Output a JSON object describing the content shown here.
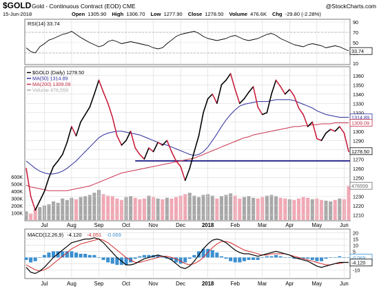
{
  "header": {
    "symbol": "$GOLD",
    "name": "Gold - Continuous Contract (EOD) CME",
    "watermark": "@StockCharts.com",
    "date": "15-Jun-2018",
    "open_label": "Open",
    "open": "1305.90",
    "high_label": "High",
    "high": "1306.70",
    "low_label": "Low",
    "low": "1277.90",
    "close_label": "Close",
    "close": "1278.50",
    "volume_label": "Volume",
    "volume": "476.6K",
    "chg_label": "Chg",
    "chg": "-29.80 (-2.28%)"
  },
  "colors": {
    "price": "#000000",
    "price_down": "#c81e3c",
    "ma50": "#2b2b9a",
    "ma200": "#c8324b",
    "volume_up": "#a8a8a8",
    "volume_down": "#f0a8b4",
    "macd": "#000000",
    "signal": "#d02828",
    "histogram": "#3a8fd0",
    "rsi": "#000000",
    "support": "#00007a",
    "grid": "#d9d9d9"
  },
  "chart_data": [
    {
      "type": "line",
      "panel": "rsi",
      "legend": "RSI(14) 33.74",
      "last_value": "33.74",
      "ylim": [
        10,
        90
      ],
      "y_ticks": [
        10,
        30,
        50,
        70,
        90
      ],
      "y_tick_labels": [
        "10",
        "30",
        "50",
        "70",
        "90"
      ],
      "reference_lines": [
        30,
        70
      ],
      "series": [
        {
          "name": "RSI(14)",
          "values": [
            40,
            33,
            30,
            42,
            48,
            55,
            58,
            62,
            66,
            68,
            72,
            66,
            60,
            55,
            50,
            46,
            42,
            45,
            52,
            55,
            52,
            48,
            50,
            52,
            50,
            48,
            46,
            44,
            40,
            38,
            40,
            48,
            55,
            62,
            66,
            68,
            70,
            72,
            68,
            62,
            58,
            56,
            54,
            56,
            58,
            62,
            64,
            60,
            56,
            54,
            56,
            58,
            62,
            66,
            68,
            64,
            58,
            54,
            50,
            46,
            44,
            42,
            46,
            48,
            46,
            44,
            40,
            42,
            44,
            42,
            38,
            34
          ]
        }
      ]
    },
    {
      "type": "line",
      "panel": "price",
      "legend": [
        {
          "label": "$GOLD (Daily) 1278.50",
          "color": "#000000"
        },
        {
          "label": "MA(50) 1314.89",
          "color": "#2b2b9a"
        },
        {
          "label": "MA(200) 1309.09",
          "color": "#c8324b"
        },
        {
          "label": "Volume 476,559",
          "color": "#a8a8a8"
        }
      ],
      "ylim": [
        1205,
        1368
      ],
      "y_ticks": [
        1210,
        1220,
        1230,
        1240,
        1250,
        1260,
        1270,
        1280,
        1290,
        1300,
        1310,
        1320,
        1330,
        1340,
        1350,
        1360
      ],
      "y_tick_labels": [
        "1210",
        "1220",
        "1230",
        "1240",
        "1250",
        "1260",
        "1270",
        "1280",
        "1290",
        "1300",
        "1310",
        "1320",
        "1330",
        "1340",
        "1350",
        "1360"
      ],
      "x_tick_labels": [
        "Jul",
        "Aug",
        "Sep",
        "Oct",
        "Nov",
        "Dec",
        "2018",
        "Feb",
        "Mar",
        "Apr",
        "May",
        "Jun"
      ],
      "x_tick_index": [
        4,
        10,
        16,
        22,
        28,
        34,
        40,
        46,
        52,
        58,
        64,
        70
      ],
      "support_level": 1268,
      "value_tags": [
        {
          "text": "1314.89",
          "value": 1314.89,
          "color": "#2b2b9a"
        },
        {
          "text": "1309.09",
          "value": 1309.09,
          "color": "#c8324b"
        },
        {
          "text": "1278.50",
          "value": 1278.5,
          "color": "#000000"
        }
      ],
      "series": [
        {
          "name": "$GOLD",
          "values": [
            1260,
            1230,
            1215,
            1225,
            1235,
            1250,
            1262,
            1268,
            1275,
            1288,
            1305,
            1295,
            1310,
            1318,
            1326,
            1340,
            1355,
            1342,
            1330,
            1315,
            1295,
            1285,
            1290,
            1300,
            1282,
            1275,
            1270,
            1282,
            1278,
            1288,
            1285,
            1290,
            1278,
            1268,
            1262,
            1247,
            1260,
            1278,
            1295,
            1320,
            1335,
            1340,
            1330,
            1350,
            1355,
            1362,
            1345,
            1330,
            1335,
            1342,
            1348,
            1326,
            1318,
            1320,
            1340,
            1355,
            1348,
            1340,
            1345,
            1338,
            1325,
            1318,
            1305,
            1310,
            1292,
            1290,
            1298,
            1302,
            1300,
            1305,
            1298,
            1278
          ]
        },
        {
          "name": "MA(50)",
          "values": [
            1268,
            1264,
            1260,
            1257,
            1255,
            1254,
            1254,
            1255,
            1257,
            1260,
            1264,
            1268,
            1273,
            1278,
            1283,
            1288,
            1293,
            1296,
            1298,
            1299,
            1300,
            1300,
            1299,
            1298,
            1297,
            1296,
            1294,
            1292,
            1290,
            1288,
            1286,
            1285,
            1283,
            1281,
            1279,
            1277,
            1275,
            1274,
            1275,
            1278,
            1283,
            1290,
            1297,
            1305,
            1312,
            1318,
            1323,
            1327,
            1329,
            1330,
            1331,
            1332,
            1332,
            1332,
            1333,
            1334,
            1334,
            1334,
            1334,
            1333,
            1331,
            1329,
            1327,
            1325,
            1322,
            1320,
            1318,
            1317,
            1316,
            1315,
            1315,
            1315
          ]
        },
        {
          "name": "MA(200)",
          "values": [
            1242,
            1240,
            1239,
            1238,
            1237,
            1236,
            1236,
            1236,
            1236,
            1236,
            1237,
            1238,
            1239,
            1240,
            1241,
            1243,
            1245,
            1247,
            1249,
            1251,
            1253,
            1255,
            1256,
            1257,
            1258,
            1259,
            1260,
            1261,
            1262,
            1263,
            1264,
            1265,
            1266,
            1267,
            1268,
            1269,
            1270,
            1271,
            1273,
            1275,
            1277,
            1279,
            1281,
            1283,
            1285,
            1287,
            1289,
            1291,
            1293,
            1294,
            1296,
            1297,
            1298,
            1299,
            1300,
            1301,
            1302,
            1303,
            1304,
            1305,
            1305,
            1306,
            1306,
            1307,
            1307,
            1308,
            1308,
            1308,
            1309,
            1309,
            1309,
            1309
          ]
        }
      ]
    },
    {
      "type": "bar",
      "panel": "volume",
      "ylim": [
        0,
        650000
      ],
      "y_ticks": [
        100000,
        200000,
        300000,
        400000,
        500000,
        600000
      ],
      "y_tick_labels": [
        "100K",
        "200K",
        "300K",
        "400K",
        "500K",
        "600K"
      ],
      "last_value": "476559",
      "last_tag": "476559",
      "series": [
        {
          "name": "Volume",
          "values": [
            120000,
            90000,
            150000,
            180000,
            200000,
            220000,
            260000,
            240000,
            300000,
            280000,
            310000,
            290000,
            320000,
            330000,
            350000,
            380000,
            420000,
            360000,
            340000,
            330000,
            300000,
            280000,
            320000,
            330000,
            310000,
            290000,
            300000,
            340000,
            320000,
            300000,
            290000,
            310000,
            300000,
            320000,
            340000,
            360000,
            380000,
            340000,
            320000,
            350000,
            360000,
            340000,
            300000,
            330000,
            350000,
            370000,
            340000,
            300000,
            320000,
            330000,
            310000,
            300000,
            320000,
            340000,
            350000,
            330000,
            310000,
            300000,
            290000,
            280000,
            300000,
            320000,
            310000,
            290000,
            300000,
            280000,
            270000,
            260000,
            280000,
            300000,
            290000,
            476559
          ]
        }
      ]
    },
    {
      "type": "line",
      "panel": "macd",
      "legend": [
        {
          "label": "MACD(12,26,9)",
          "color": "#000000"
        },
        {
          "label": "-4.120",
          "color": "#000000"
        },
        {
          "label": "-4.051",
          "color": "#d02828"
        },
        {
          "label": "-0.069",
          "color": "#3a8fd0"
        }
      ],
      "ylim": [
        -16,
        22
      ],
      "y_ticks": [
        -10,
        -5,
        0,
        5,
        10,
        15,
        20
      ],
      "y_tick_labels": [
        "-10",
        "-5",
        "0",
        "5",
        "10",
        "15",
        "20"
      ],
      "value_tags": [
        {
          "text": "-0.069",
          "value": -0.069,
          "color": "#3a8fd0"
        },
        {
          "text": "-4.120",
          "value": -4.12,
          "color": "#000000"
        }
      ],
      "x_tick_labels": [
        "Jul",
        "Aug",
        "Sep",
        "Oct",
        "Nov",
        "Dec",
        "2018",
        "Feb",
        "Mar",
        "Apr",
        "May",
        "Jun"
      ],
      "series": [
        {
          "name": "MACD",
          "values": [
            -8,
            -12,
            -13,
            -11,
            -8,
            -4,
            0,
            3,
            6,
            9,
            12,
            13,
            14,
            15,
            15,
            16,
            15,
            12,
            8,
            4,
            0,
            -3,
            -6,
            -6,
            -5,
            -3,
            -1,
            0,
            1,
            2,
            1,
            0,
            -2,
            -5,
            -8,
            -9,
            -7,
            -3,
            2,
            7,
            11,
            14,
            15,
            14,
            12,
            9,
            6,
            4,
            3,
            3,
            2,
            1,
            2,
            3,
            4,
            5,
            4,
            3,
            2,
            0,
            -1,
            -2,
            -3,
            -5,
            -7,
            -8,
            -7,
            -6,
            -5,
            -4,
            -4,
            -4
          ]
        },
        {
          "name": "Signal",
          "values": [
            -6,
            -8,
            -10,
            -11,
            -10,
            -8,
            -5,
            -2,
            1,
            4,
            7,
            9,
            11,
            12,
            13,
            14,
            15,
            14,
            12,
            9,
            6,
            3,
            0,
            -2,
            -4,
            -4,
            -3,
            -2,
            -1,
            0,
            1,
            1,
            0,
            -1,
            -3,
            -5,
            -6,
            -5,
            -3,
            0,
            4,
            8,
            11,
            13,
            13,
            12,
            10,
            8,
            6,
            5,
            4,
            3,
            2,
            2,
            3,
            3,
            3,
            3,
            2,
            1,
            0,
            -1,
            -2,
            -3,
            -4,
            -5,
            -6,
            -6,
            -5,
            -5,
            -4,
            -4
          ]
        },
        {
          "name": "Histogram",
          "values": [
            -2,
            -4,
            -3,
            0,
            2,
            4,
            5,
            5,
            5,
            5,
            5,
            4,
            3,
            3,
            2,
            2,
            0,
            -2,
            -4,
            -5,
            -6,
            -6,
            -6,
            -4,
            -1,
            1,
            2,
            2,
            2,
            2,
            0,
            -1,
            -2,
            -4,
            -5,
            -4,
            -1,
            2,
            5,
            7,
            7,
            6,
            4,
            1,
            -1,
            -3,
            -4,
            -4,
            -3,
            -2,
            -2,
            -2,
            0,
            1,
            1,
            2,
            1,
            0,
            0,
            -1,
            -1,
            -1,
            -1,
            -2,
            -3,
            -3,
            -1,
            0,
            0,
            1,
            0,
            0
          ]
        }
      ]
    }
  ]
}
